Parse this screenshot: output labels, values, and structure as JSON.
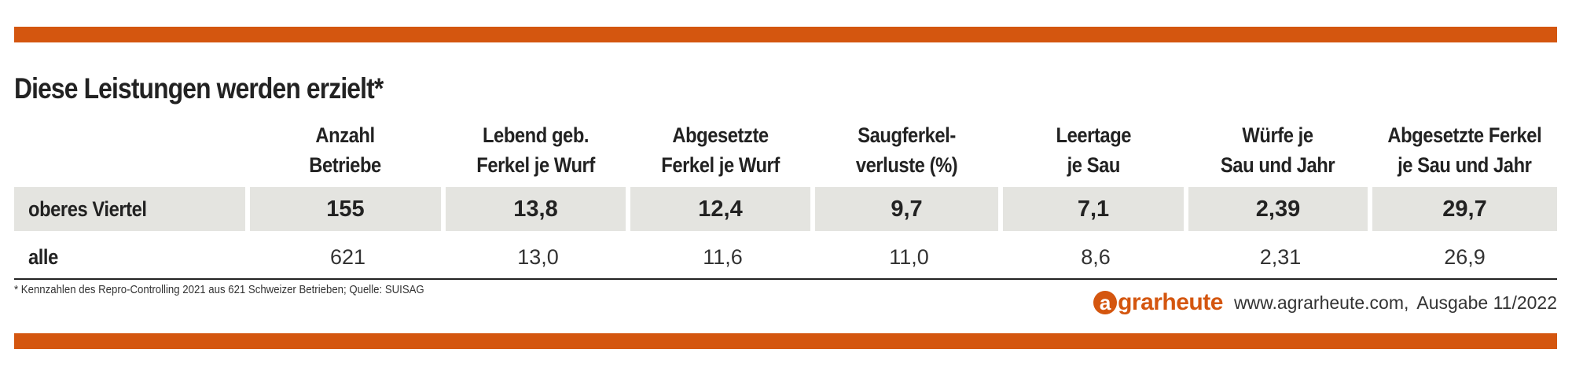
{
  "title": "Diese Leistungen werden erzielt*",
  "table": {
    "headers": [
      "",
      "Anzahl\nBetriebe",
      "Lebend geb.\nFerkel je Wurf",
      "Abgesetzte\nFerkel je Wurf",
      "Saugferkel-\nverluste (%)",
      "Leertage\nje Sau",
      "Würfe je\nSau und Jahr",
      "Abgesetzte Ferkel\nje Sau und Jahr"
    ],
    "rows": [
      {
        "label": "oberes Viertel",
        "values": [
          "155",
          "13,8",
          "12,4",
          "9,7",
          "7,1",
          "2,39",
          "29,7"
        ]
      },
      {
        "label": "alle",
        "values": [
          "621",
          "13,0",
          "11,6",
          "11,0",
          "8,6",
          "2,31",
          "26,9"
        ]
      }
    ]
  },
  "footnote": "* Kennzahlen des Repro-Controlling 2021 aus 621 Schweizer Betrieben; Quelle: SUISAG",
  "brand": {
    "logo_letter": "a",
    "logo_rest": "grarheute",
    "website": "www.agrarheute.com,",
    "issue": "Ausgabe 11/2022"
  },
  "colors": {
    "accent": "#d4560f",
    "row_shade": "#e4e4e0",
    "text": "#222222"
  }
}
